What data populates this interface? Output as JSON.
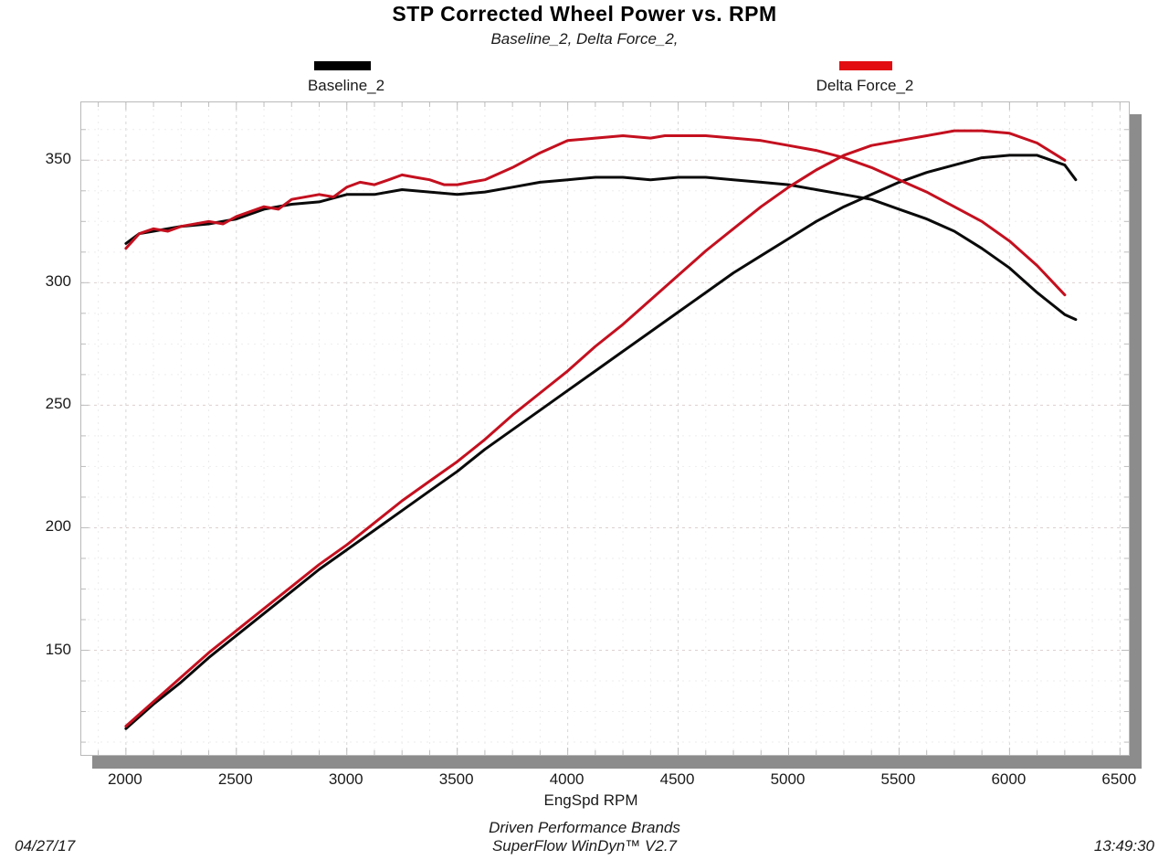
{
  "header": {
    "title": "STP Corrected Wheel Power vs. RPM",
    "subtitle": "Baseline_2, Delta Force_2,"
  },
  "legend": [
    {
      "label": "Baseline_2",
      "color": "#000000"
    },
    {
      "label": "Delta Force_2",
      "color": "#e20d11"
    }
  ],
  "footer": {
    "brand_line": "Driven Performance Brands",
    "software_line": "SuperFlow WinDyn™ V2.7",
    "date": "04/27/17",
    "time": "13:49:30"
  },
  "chart_data": {
    "type": "line",
    "title": "STP Corrected Wheel Power vs. RPM",
    "subtitle": "Baseline_2, Delta Force_2,",
    "xlabel": "EngSpd RPM",
    "ylabel": "",
    "xlim": [
      1798,
      6540
    ],
    "ylim": [
      107.3,
      373.6
    ],
    "x_ticks": [
      2000,
      2500,
      3000,
      3500,
      4000,
      4500,
      5000,
      5500,
      6000,
      6500
    ],
    "y_ticks": [
      150,
      200,
      250,
      300,
      350
    ],
    "x_minor_step": 125,
    "y_minor_step": 12.5,
    "grid": "dashed, minor and major, on",
    "legend_position": "top, outside plot",
    "series": [
      {
        "name": "Baseline_2",
        "color": "#0a0a0a",
        "traces": [
          {
            "id": "baseline-upper-curve",
            "rpm": [
              2000,
              2060,
              2125,
              2250,
              2375,
              2500,
              2625,
              2750,
              2875,
              3000,
              3125,
              3250,
              3375,
              3500,
              3625,
              3750,
              3875,
              4000,
              4125,
              4250,
              4375,
              4500,
              4625,
              4750,
              4875,
              5000,
              5125,
              5250,
              5375,
              5500,
              5625,
              5750,
              5875,
              6000,
              6125,
              6250,
              6300
            ],
            "hp": [
              316,
              320,
              321,
              323,
              324,
              326,
              330,
              332,
              333,
              336,
              336,
              338,
              337,
              336,
              337,
              339,
              341,
              342,
              343,
              343,
              342,
              343,
              343,
              342,
              341,
              340,
              338,
              336,
              334,
              330,
              326,
              321,
              314,
              306,
              296,
              287,
              285
            ]
          },
          {
            "id": "baseline-rising-curve",
            "rpm": [
              2000,
              2125,
              2250,
              2375,
              2500,
              2625,
              2750,
              2875,
              3000,
              3125,
              3250,
              3375,
              3500,
              3625,
              3750,
              3875,
              4000,
              4125,
              4250,
              4375,
              4500,
              4625,
              4750,
              4875,
              5000,
              5125,
              5250,
              5375,
              5500,
              5625,
              5750,
              5875,
              6000,
              6125,
              6250,
              6300
            ],
            "hp": [
              118,
              128,
              137,
              147,
              156,
              165,
              174,
              183,
              191,
              199,
              207,
              215,
              223,
              232,
              240,
              248,
              256,
              264,
              272,
              280,
              288,
              296,
              304,
              311,
              318,
              325,
              331,
              336,
              341,
              345,
              348,
              351,
              352,
              352,
              348,
              342
            ]
          }
        ]
      },
      {
        "name": "Delta Force_2",
        "color": "#c4101f",
        "traces": [
          {
            "id": "delta-upper-curve",
            "rpm": [
              2000,
              2060,
              2125,
              2190,
              2250,
              2375,
              2440,
              2500,
              2625,
              2690,
              2750,
              2875,
              2940,
              3000,
              3060,
              3125,
              3190,
              3250,
              3310,
              3375,
              3440,
              3500,
              3560,
              3625,
              3750,
              3875,
              4000,
              4125,
              4250,
              4375,
              4440,
              4500,
              4625,
              4750,
              4875,
              5000,
              5125,
              5250,
              5375,
              5500,
              5625,
              5750,
              5875,
              6000,
              6125,
              6250
            ],
            "hp": [
              314,
              320,
              322,
              321,
              323,
              325,
              324,
              327,
              331,
              330,
              334,
              336,
              335,
              339,
              341,
              340,
              342,
              344,
              343,
              342,
              340,
              340,
              341,
              342,
              347,
              353,
              358,
              359,
              360,
              359,
              360,
              360,
              360,
              359,
              358,
              356,
              354,
              351,
              347,
              342,
              337,
              331,
              325,
              317,
              307,
              295
            ]
          },
          {
            "id": "delta-rising-curve",
            "rpm": [
              2000,
              2125,
              2250,
              2375,
              2500,
              2625,
              2750,
              2875,
              3000,
              3125,
              3250,
              3375,
              3500,
              3625,
              3750,
              3875,
              4000,
              4125,
              4250,
              4375,
              4500,
              4625,
              4750,
              4875,
              5000,
              5125,
              5250,
              5375,
              5500,
              5625,
              5750,
              5875,
              6000,
              6125,
              6250
            ],
            "hp": [
              119,
              129,
              139,
              149,
              158,
              167,
              176,
              185,
              193,
              202,
              211,
              219,
              227,
              236,
              246,
              255,
              264,
              274,
              283,
              293,
              303,
              313,
              322,
              331,
              339,
              346,
              352,
              356,
              358,
              360,
              362,
              362,
              361,
              357,
              350
            ]
          }
        ]
      }
    ]
  }
}
